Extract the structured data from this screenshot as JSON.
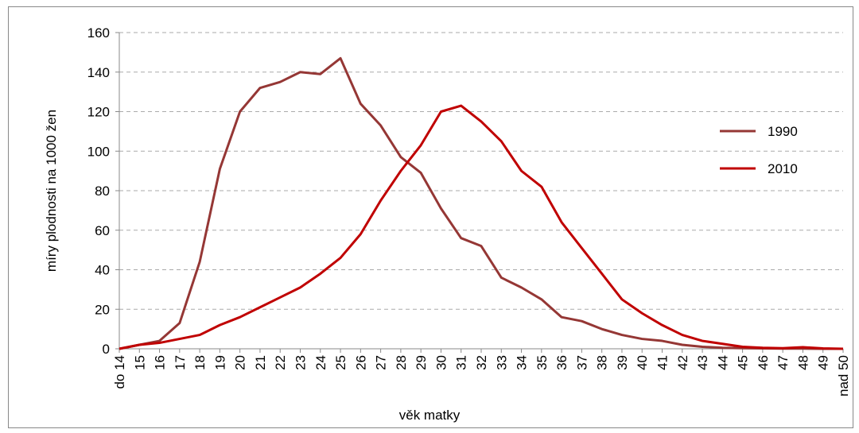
{
  "chart_data": {
    "type": "line",
    "xlabel": "věk matky",
    "ylabel": "míry plodnosti na 1000 žen",
    "categories": [
      "do 14",
      "15",
      "16",
      "17",
      "18",
      "19",
      "20",
      "21",
      "22",
      "23",
      "24",
      "25",
      "26",
      "27",
      "28",
      "29",
      "30",
      "31",
      "32",
      "33",
      "34",
      "35",
      "36",
      "37",
      "38",
      "39",
      "40",
      "41",
      "42",
      "43",
      "44",
      "45",
      "46",
      "47",
      "48",
      "49",
      "nad 50"
    ],
    "series": [
      {
        "name": "1990",
        "color": "#953735",
        "values": [
          0,
          2,
          4,
          13,
          44,
          91,
          120,
          132,
          135,
          140,
          139,
          147,
          124,
          113,
          97,
          89,
          71,
          56,
          52,
          36,
          31,
          25,
          16,
          14,
          10,
          7,
          5,
          4,
          2,
          1,
          0.5,
          0.3,
          0.2,
          0.1,
          0.1,
          0,
          0
        ]
      },
      {
        "name": "2010",
        "color": "#c00000",
        "values": [
          0,
          2,
          3,
          5,
          7,
          12,
          16,
          21,
          26,
          31,
          38,
          46,
          58,
          75,
          90,
          103,
          120,
          123,
          115,
          105,
          90,
          82,
          64,
          51,
          38,
          25,
          18,
          12,
          7,
          4,
          2.5,
          1,
          0.5,
          0.3,
          0.8,
          0.2,
          0
        ]
      }
    ],
    "ylim": [
      0,
      160
    ],
    "yticks": [
      0,
      20,
      40,
      60,
      80,
      100,
      120,
      140,
      160
    ],
    "grid": true,
    "legend": "right"
  }
}
